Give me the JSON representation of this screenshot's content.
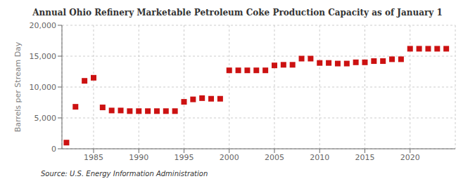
{
  "chart_data": {
    "type": "scatter",
    "title": "Annual Ohio Refinery Marketable Petroleum Coke Production Capacity as of January 1",
    "ylabel": "Barrels per Stream Day",
    "annotation": "Source: U.S. Energy Information Administration",
    "color": "#cc1111",
    "marker": "square",
    "grid": true,
    "xlim": [
      1981.5,
      2025
    ],
    "xticks": [
      1985,
      1990,
      1995,
      2000,
      2005,
      2010,
      2015,
      2020
    ],
    "ylim": [
      0,
      20000
    ],
    "yticks": [
      0,
      {
        "value": 5000,
        "label": "5,000"
      },
      {
        "value": 10000,
        "label": "10,000"
      },
      {
        "value": 15000,
        "label": "15,000"
      },
      {
        "value": 20000,
        "label": "20,000"
      }
    ],
    "x": [
      1982,
      1983,
      1984,
      1985,
      1986,
      1987,
      1988,
      1989,
      1990,
      1991,
      1992,
      1993,
      1994,
      1995,
      1996,
      1997,
      1998,
      1999,
      2000,
      2001,
      2002,
      2003,
      2004,
      2005,
      2006,
      2007,
      2008,
      2009,
      2010,
      2011,
      2012,
      2013,
      2014,
      2015,
      2016,
      2017,
      2018,
      2019,
      2020,
      2021,
      2022,
      2023,
      2024
    ],
    "values": [
      1000,
      6800,
      11000,
      11500,
      6700,
      6200,
      6200,
      6100,
      6100,
      6100,
      6100,
      6100,
      6100,
      7600,
      8000,
      8200,
      8100,
      8100,
      12700,
      12700,
      12700,
      12700,
      12700,
      13500,
      13600,
      13600,
      14600,
      14600,
      13900,
      13900,
      13800,
      13800,
      14000,
      14000,
      14200,
      14200,
      14500,
      14500,
      16200,
      16200,
      16200,
      16200,
      16200
    ]
  }
}
